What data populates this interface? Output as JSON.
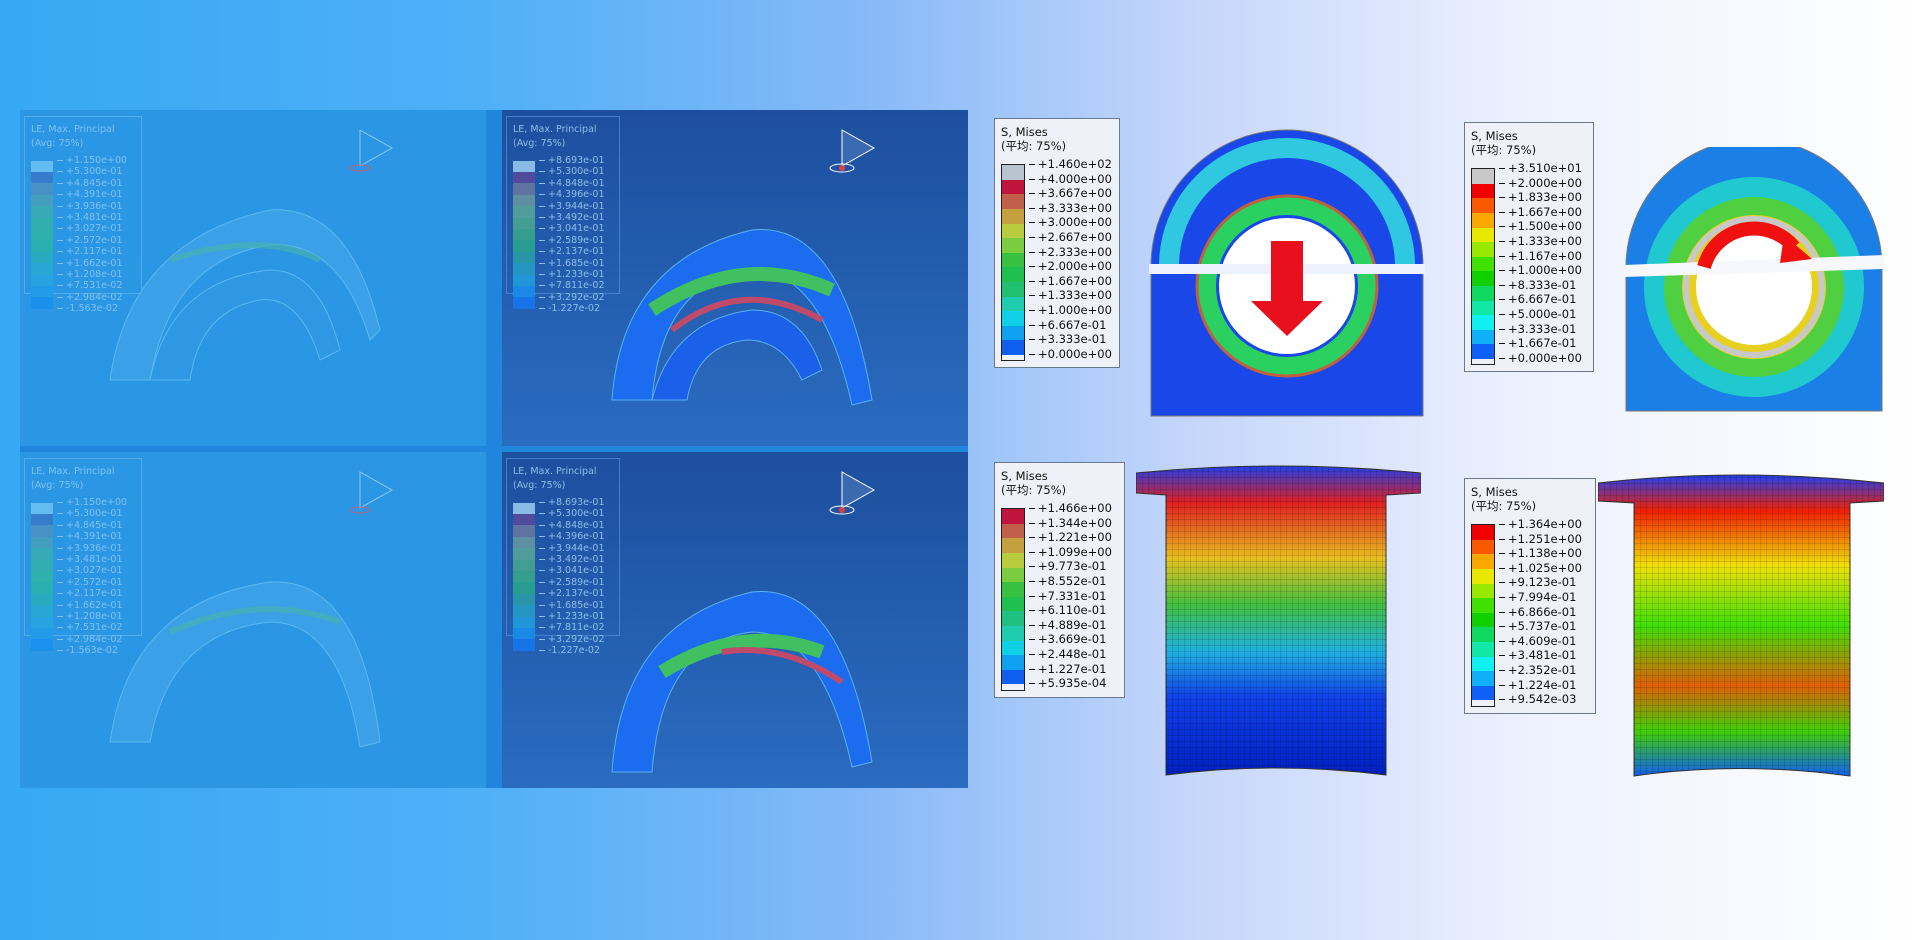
{
  "left_panels": {
    "top_left": {
      "title": "LE, Max. Principal",
      "subtitle": "(Avg: 75%)",
      "values": [
        "+1.150e+00",
        "+5.300e-01",
        "+4.845e-01",
        "+4.391e-01",
        "+3.936e-01",
        "+3.481e-01",
        "+3.027e-01",
        "+2.572e-01",
        "+2.117e-01",
        "+1.662e-01",
        "+1.208e-01",
        "+7.531e-02",
        "+2.984e-02",
        "-1.563e-02"
      ],
      "colors": [
        "#6fc3f3",
        "#3a78c8",
        "#4f8fc0",
        "#4aa0b8",
        "#3aaeb0",
        "#34b2a8",
        "#2eb6a0",
        "#2ab4a8",
        "#2aaeb8",
        "#28aad0",
        "#26a6e0",
        "#229ee8",
        "#1a90f0",
        "#1480f2"
      ]
    },
    "top_right": {
      "title": "LE, Max. Principal",
      "subtitle": "(Avg: 75%)",
      "values": [
        "+8.693e-01",
        "+5.300e-01",
        "+4.848e-01",
        "+4.396e-01",
        "+3.944e-01",
        "+3.492e-01",
        "+3.041e-01",
        "+2.589e-01",
        "+2.137e-01",
        "+1.685e-01",
        "+1.233e-01",
        "+7.811e-02",
        "+3.292e-02",
        "-1.227e-02"
      ],
      "colors": [
        "#9ccff0",
        "#5a4a9a",
        "#6a7aa0",
        "#6a9aa0",
        "#5aaa9a",
        "#4aaa90",
        "#3aaa8a",
        "#2aa88a",
        "#2aa0a8",
        "#26a0c8",
        "#20a0e0",
        "#1890f0",
        "#1478f0",
        "#1060f0"
      ]
    },
    "bottom_left": {
      "title": "LE, Max. Principal",
      "subtitle": "(Avg: 75%)",
      "values": [
        "+1.150e+00",
        "+5.300e-01",
        "+4.845e-01",
        "+4.391e-01",
        "+3.936e-01",
        "+3.481e-01",
        "+3.027e-01",
        "+2.572e-01",
        "+2.117e-01",
        "+1.662e-01",
        "+1.208e-01",
        "+7.531e-02",
        "+2.984e-02",
        "-1.563e-02"
      ],
      "colors": [
        "#6fc3f3",
        "#3a78c8",
        "#4f8fc0",
        "#4aa0b8",
        "#3aaeb0",
        "#34b2a8",
        "#2eb6a0",
        "#2ab4a8",
        "#2aaeb8",
        "#28aad0",
        "#26a6e0",
        "#229ee8",
        "#1a90f0",
        "#1480f2"
      ]
    },
    "bottom_right": {
      "title": "LE, Max. Principal",
      "subtitle": "(Avg: 75%)",
      "values": [
        "+8.693e-01",
        "+5.300e-01",
        "+4.848e-01",
        "+4.396e-01",
        "+3.944e-01",
        "+3.492e-01",
        "+3.041e-01",
        "+2.589e-01",
        "+2.137e-01",
        "+1.685e-01",
        "+1.233e-01",
        "+7.811e-02",
        "+3.292e-02",
        "-1.227e-02"
      ],
      "colors": [
        "#9ccff0",
        "#5a4a9a",
        "#6a7aa0",
        "#6a9aa0",
        "#5aaa9a",
        "#4aaa90",
        "#3aaa8a",
        "#2aa88a",
        "#2aa0a8",
        "#26a0c8",
        "#20a0e0",
        "#1890f0",
        "#1478f0",
        "#1060f0"
      ]
    }
  },
  "right_legends": {
    "bracket_press": {
      "title": "S, Mises",
      "subtitle": "(平均: 75%)",
      "values": [
        "+1.460e+02",
        "+4.000e+00",
        "+3.667e+00",
        "+3.333e+00",
        "+3.000e+00",
        "+2.667e+00",
        "+2.333e+00",
        "+2.000e+00",
        "+1.667e+00",
        "+1.333e+00",
        "+1.000e+00",
        "+6.667e-01",
        "+3.333e-01",
        "+0.000e+00"
      ],
      "colors": [
        "#b8c4d0",
        "#c0143c",
        "#c0604a",
        "#c4a040",
        "#b8cc40",
        "#7ccc40",
        "#38c040",
        "#20c050",
        "#20c070",
        "#20ccb0",
        "#10d0e8",
        "#10a0f0",
        "#1060f0",
        "#1020f0"
      ]
    },
    "bracket_twist": {
      "title": "S, Mises",
      "subtitle": "(平均: 75%)",
      "values": [
        "+3.510e+01",
        "+2.000e+00",
        "+1.833e+00",
        "+1.667e+00",
        "+1.500e+00",
        "+1.333e+00",
        "+1.167e+00",
        "+1.000e+00",
        "+8.333e-01",
        "+6.667e-01",
        "+5.000e-01",
        "+3.333e-01",
        "+1.667e-01",
        "+0.000e+00"
      ],
      "colors": [
        "#c8c8c8",
        "#f00000",
        "#f85800",
        "#f8a800",
        "#e8e800",
        "#98e800",
        "#40e000",
        "#10d000",
        "#10d860",
        "#10e8a8",
        "#10f0f0",
        "#10b0f8",
        "#1060f8",
        "#0000f0"
      ]
    },
    "sleeve_1": {
      "title": "S, Mises",
      "subtitle": "(平均: 75%)",
      "values": [
        "+1.466e+00",
        "+1.344e+00",
        "+1.221e+00",
        "+1.099e+00",
        "+9.773e-01",
        "+8.552e-01",
        "+7.331e-01",
        "+6.110e-01",
        "+4.889e-01",
        "+3.669e-01",
        "+2.448e-01",
        "+1.227e-01",
        "+5.935e-04"
      ],
      "colors": [
        "#c0143c",
        "#c0604a",
        "#c4a040",
        "#b8cc40",
        "#7ccc40",
        "#38c040",
        "#20c050",
        "#20c080",
        "#20ccb0",
        "#10d0e8",
        "#10a0f0",
        "#1060f0",
        "#1020f0"
      ]
    },
    "sleeve_2": {
      "title": "S, Mises",
      "subtitle": "(平均: 75%)",
      "values": [
        "+1.364e+00",
        "+1.251e+00",
        "+1.138e+00",
        "+1.025e+00",
        "+9.123e-01",
        "+7.994e-01",
        "+6.866e-01",
        "+5.737e-01",
        "+4.609e-01",
        "+3.481e-01",
        "+2.352e-01",
        "+1.224e-01",
        "+9.542e-03"
      ],
      "colors": [
        "#f00000",
        "#f85800",
        "#f8a800",
        "#e8e800",
        "#98e800",
        "#40e000",
        "#10d000",
        "#10d860",
        "#10e8a8",
        "#10f0f0",
        "#10b0f8",
        "#1060f8",
        "#0000f0"
      ]
    }
  },
  "arrows": {
    "press_color": "#e8101c",
    "twist_color": "#f01010"
  }
}
